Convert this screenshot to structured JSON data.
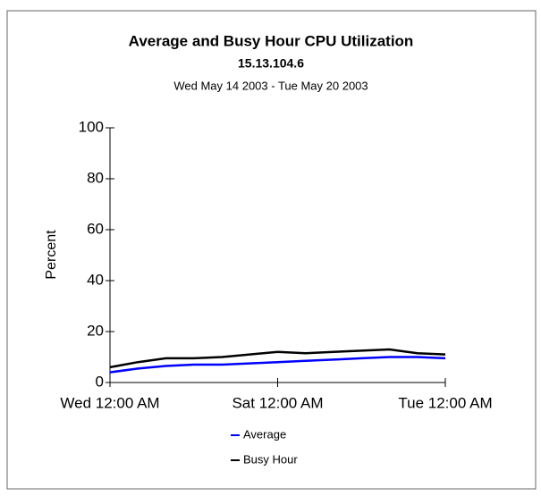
{
  "chart_data": {
    "type": "line",
    "title": "Average and Busy Hour CPU Utilization",
    "subtitle": "15.13.104.6",
    "date_range": "Wed May 14 2003 - Tue May 20 2003",
    "y_label": "Percent",
    "x": [
      0,
      0.5,
      1,
      1.5,
      2,
      2.5,
      3,
      3.5,
      4,
      4.5,
      5,
      5.5,
      6
    ],
    "xlim": [
      0,
      6
    ],
    "xticks": [
      {
        "value": 0,
        "label": "Wed 12:00 AM"
      },
      {
        "value": 3,
        "label": "Sat 12:00 AM"
      },
      {
        "value": 6,
        "label": "Tue 12:00 AM"
      }
    ],
    "ylim": [
      0,
      100
    ],
    "yticks": [
      0,
      20,
      40,
      60,
      80,
      100
    ],
    "grid": false,
    "legend": "bottom",
    "series": [
      {
        "name": "Average",
        "color": "#0000ff",
        "values": [
          4,
          5.5,
          6.5,
          7,
          7,
          7.5,
          8,
          8.5,
          9,
          9.5,
          10,
          10,
          9.5
        ]
      },
      {
        "name": "Busy Hour",
        "color": "#000000",
        "values": [
          6,
          8,
          9.5,
          9.5,
          10,
          11,
          12,
          11.5,
          12,
          12.5,
          13,
          11.5,
          11
        ]
      }
    ]
  }
}
